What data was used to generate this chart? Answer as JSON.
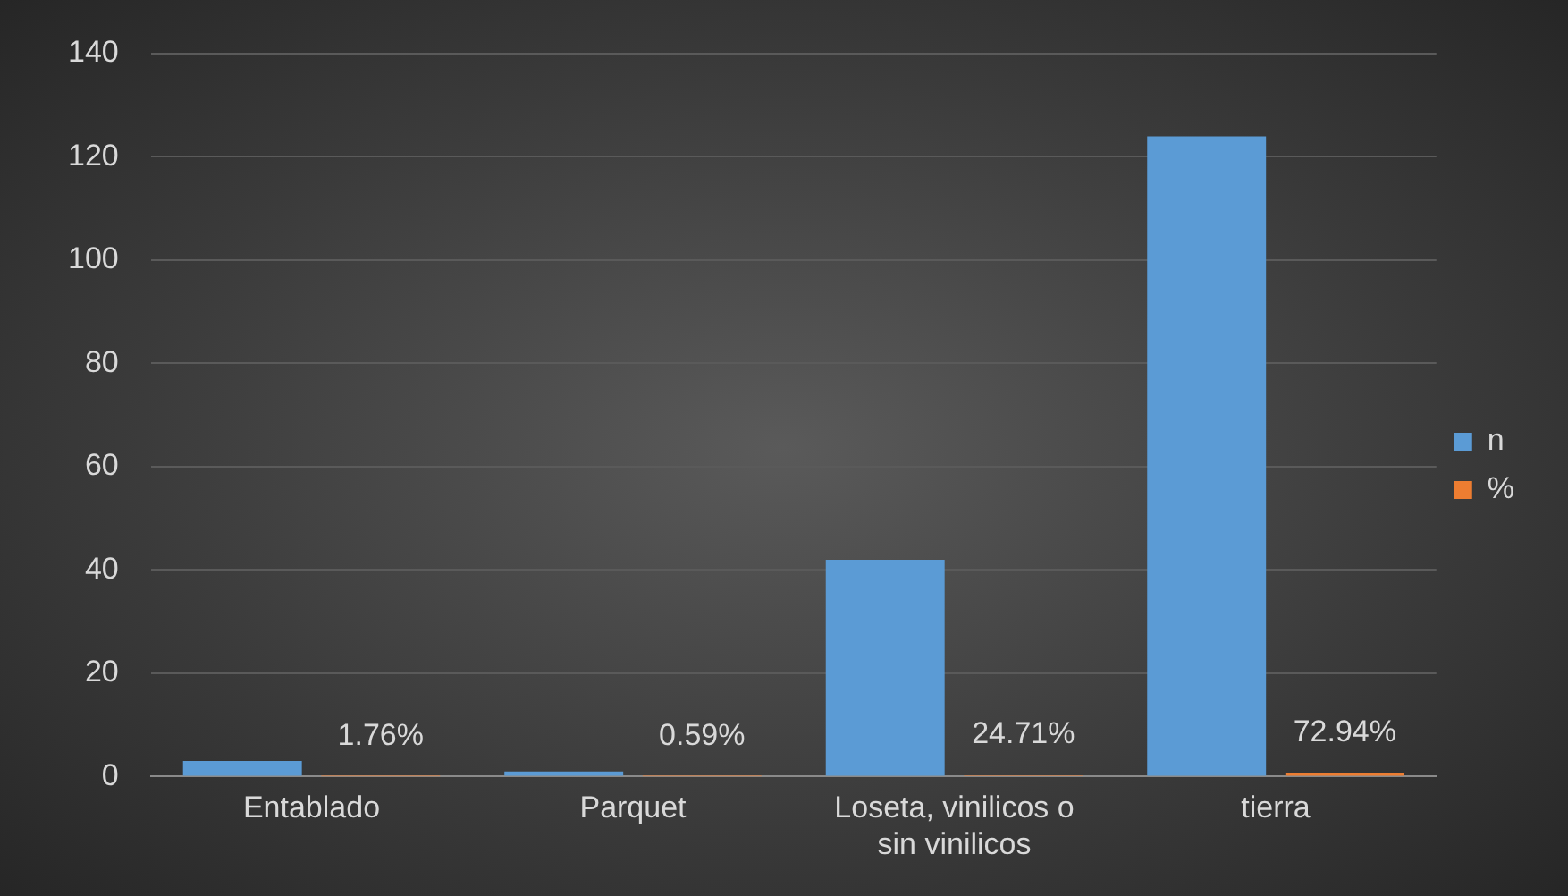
{
  "chart_data": {
    "type": "bar",
    "categories": [
      "Entablado",
      "Parquet",
      "Loseta, vinilicos o sin vinilicos",
      "tierra"
    ],
    "series": [
      {
        "name": "n",
        "color": "#5b9bd5",
        "values": [
          3,
          1,
          42,
          124
        ]
      },
      {
        "name": "%",
        "color": "#ed7d31",
        "values": [
          0.0176,
          0.0059,
          0.2471,
          0.7294
        ],
        "value_labels": [
          "1.76%",
          "0.59%",
          "24.71%",
          "72.94%"
        ]
      }
    ],
    "ylim": [
      0,
      140
    ],
    "yticks": [
      0,
      20,
      40,
      60,
      80,
      100,
      120,
      140
    ],
    "grid": "y",
    "legend": "right"
  }
}
